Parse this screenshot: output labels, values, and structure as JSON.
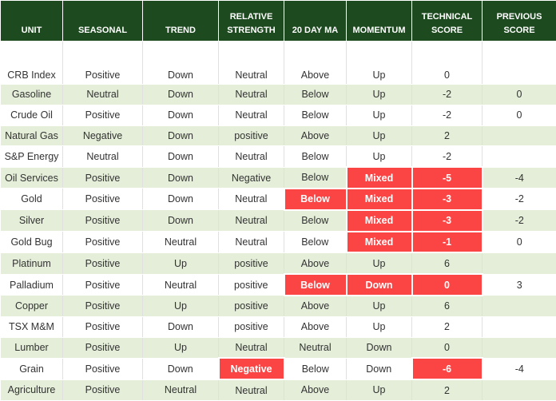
{
  "table": {
    "header": [
      "UNIT",
      "SEASONAL",
      "TREND",
      "RELATIVE STRENGTH",
      "20 DAY MA",
      "MOMENTUM",
      "TECHNICAL SCORE",
      "PREVIOUS SCORE"
    ],
    "header_color": "#1d4a1f",
    "stripe_color": "#e4eed8",
    "highlight_color": "#fb4545",
    "rows": [
      {
        "cells": [
          "CRB Index",
          "Positive",
          "Down",
          "Neutral",
          "Above",
          "Up",
          0,
          null
        ],
        "highlight": []
      },
      {
        "cells": [
          "Gasoline",
          "Neutral",
          "Down",
          "Neutral",
          "Below",
          "Up",
          -2,
          0
        ],
        "highlight": []
      },
      {
        "cells": [
          "Crude Oil",
          "Positive",
          "Down",
          "Neutral",
          "Below",
          "Up",
          -2,
          0
        ],
        "highlight": []
      },
      {
        "cells": [
          "Natural Gas",
          "Negative",
          "Down",
          "positive",
          "Above",
          "Up",
          2,
          null
        ],
        "highlight": []
      },
      {
        "cells": [
          "S&P Energy",
          "Neutral",
          "Down",
          "Neutral",
          "Below",
          "Up",
          -2,
          null
        ],
        "highlight": []
      },
      {
        "cells": [
          "Oil Services",
          "Positive",
          "Down",
          "Negative",
          "Below",
          "Mixed",
          -5,
          -4
        ],
        "highlight": [
          5,
          6
        ]
      },
      {
        "cells": [
          "Gold",
          "Positive",
          "Down",
          "Neutral",
          "Below",
          "Mixed",
          -3,
          -2
        ],
        "highlight": [
          4,
          5,
          6
        ]
      },
      {
        "cells": [
          "Silver",
          "Positive",
          "Down",
          "Neutral",
          "Below",
          "Mixed",
          -3,
          -2
        ],
        "highlight": [
          5,
          6
        ]
      },
      {
        "cells": [
          "Gold Bug",
          "Positive",
          "Neutral",
          "Neutral",
          "Below",
          "Mixed",
          -1,
          0
        ],
        "highlight": [
          5,
          6
        ]
      },
      {
        "cells": [
          "Platinum",
          "Positive",
          "Up",
          "positive",
          "Above",
          "Up",
          6,
          null
        ],
        "highlight": []
      },
      {
        "cells": [
          "Palladium",
          "Positive",
          "Neutral",
          "positive",
          "Below",
          "Down",
          0,
          3
        ],
        "highlight": [
          4,
          5,
          6
        ]
      },
      {
        "cells": [
          "Copper",
          "Positive",
          "Up",
          "positive",
          "Above",
          "Up",
          6,
          null
        ],
        "highlight": []
      },
      {
        "cells": [
          "TSX M&M",
          "Positive",
          "Down",
          "positive",
          "Above",
          "Up",
          2,
          null
        ],
        "highlight": []
      },
      {
        "cells": [
          "Lumber",
          "Positive",
          "Up",
          "Neutral",
          "Neutral",
          "Down",
          0,
          null
        ],
        "highlight": []
      },
      {
        "cells": [
          "Grain",
          "Positive",
          "Down",
          "Negative",
          "Below",
          "Down",
          -6,
          -4
        ],
        "highlight": [
          3,
          6
        ]
      },
      {
        "cells": [
          "Agriculture",
          "Positive",
          "Neutral",
          "Neutral",
          "Above",
          "Up",
          2,
          null
        ],
        "highlight": []
      }
    ]
  }
}
